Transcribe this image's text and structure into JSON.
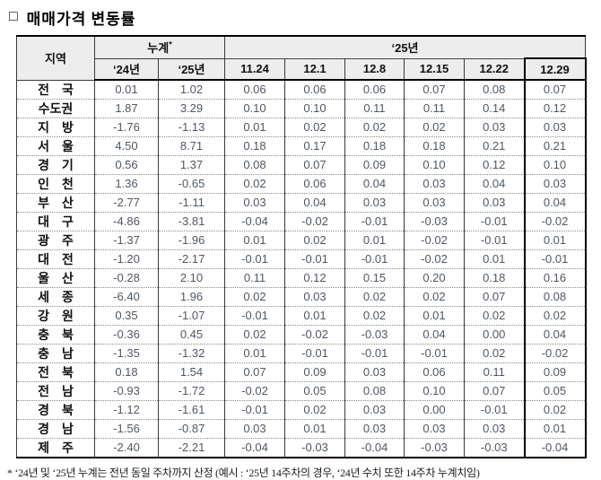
{
  "title": {
    "bullet": "□",
    "text": "매매가격 변동률"
  },
  "table": {
    "region_header": "지역",
    "cum_header": "누계",
    "cum_note_mark": "*",
    "year_header": "‘25년",
    "sub_headers": [
      "‘24년",
      "‘25년",
      "11.24",
      "12.1",
      "12.8",
      "12.15",
      "12.22",
      "12.29"
    ],
    "rows": [
      {
        "region": "전　국",
        "values": [
          "0.01",
          "1.02",
          "0.06",
          "0.06",
          "0.06",
          "0.07",
          "0.08",
          "0.07"
        ]
      },
      {
        "region": "수도권",
        "values": [
          "1.87",
          "3.29",
          "0.10",
          "0.10",
          "0.11",
          "0.11",
          "0.14",
          "0.12"
        ]
      },
      {
        "region": "지　방",
        "values": [
          "-1.76",
          "-1.13",
          "0.01",
          "0.02",
          "0.02",
          "0.02",
          "0.03",
          "0.03"
        ]
      },
      {
        "region": "서　울",
        "values": [
          "4.50",
          "8.71",
          "0.18",
          "0.17",
          "0.18",
          "0.18",
          "0.21",
          "0.21"
        ]
      },
      {
        "region": "경　기",
        "values": [
          "0.56",
          "1.37",
          "0.08",
          "0.07",
          "0.09",
          "0.10",
          "0.12",
          "0.10"
        ]
      },
      {
        "region": "인　천",
        "values": [
          "1.36",
          "-0.65",
          "0.02",
          "0.06",
          "0.04",
          "0.03",
          "0.04",
          "0.03"
        ]
      },
      {
        "region": "부　산",
        "values": [
          "-2.77",
          "-1.11",
          "0.03",
          "0.04",
          "0.03",
          "0.03",
          "0.03",
          "0.04"
        ]
      },
      {
        "region": "대　구",
        "values": [
          "-4.86",
          "-3.81",
          "-0.04",
          "-0.02",
          "-0.01",
          "-0.03",
          "-0.01",
          "-0.02"
        ]
      },
      {
        "region": "광　주",
        "values": [
          "-1.37",
          "-1.96",
          "0.01",
          "0.02",
          "0.01",
          "-0.02",
          "-0.01",
          "0.01"
        ]
      },
      {
        "region": "대　전",
        "values": [
          "-1.20",
          "-2.17",
          "-0.01",
          "-0.01",
          "-0.01",
          "-0.02",
          "0.01",
          "-0.01"
        ]
      },
      {
        "region": "울　산",
        "values": [
          "-0.28",
          "2.10",
          "0.11",
          "0.12",
          "0.15",
          "0.20",
          "0.18",
          "0.16"
        ]
      },
      {
        "region": "세　종",
        "values": [
          "-6.40",
          "1.96",
          "0.02",
          "0.03",
          "0.02",
          "0.02",
          "0.07",
          "0.08"
        ]
      },
      {
        "region": "강　원",
        "values": [
          "0.35",
          "-1.07",
          "-0.01",
          "0.01",
          "0.02",
          "0.01",
          "0.02",
          "0.02"
        ]
      },
      {
        "region": "충　북",
        "values": [
          "-0.36",
          "0.45",
          "0.02",
          "-0.02",
          "-0.03",
          "0.04",
          "0.00",
          "0.04"
        ]
      },
      {
        "region": "충　남",
        "values": [
          "-1.35",
          "-1.32",
          "0.01",
          "-0.01",
          "-0.01",
          "-0.01",
          "0.02",
          "-0.02"
        ]
      },
      {
        "region": "전　북",
        "values": [
          "0.18",
          "1.54",
          "0.07",
          "0.09",
          "0.03",
          "0.06",
          "0.11",
          "0.09"
        ]
      },
      {
        "region": "전　남",
        "values": [
          "-0.93",
          "-1.72",
          "-0.02",
          "0.05",
          "0.08",
          "0.10",
          "0.07",
          "0.05"
        ]
      },
      {
        "region": "경　북",
        "values": [
          "-1.12",
          "-1.61",
          "-0.01",
          "0.02",
          "0.03",
          "0.00",
          "-0.01",
          "0.02"
        ]
      },
      {
        "region": "경　남",
        "values": [
          "-1.56",
          "-0.87",
          "0.03",
          "0.01",
          "0.03",
          "0.03",
          "0.03",
          "0.01"
        ]
      },
      {
        "region": "제　주",
        "values": [
          "-2.40",
          "-2.21",
          "-0.04",
          "-0.03",
          "-0.04",
          "-0.03",
          "-0.03",
          "-0.04"
        ]
      }
    ]
  },
  "footnote": "* ‘24년 및 ‘25년 누계는 전년 동일 주차까지 산정 (예시 : ‘25년 14주차의 경우, ‘24년 수치 또한 14주차 누계치임)"
}
